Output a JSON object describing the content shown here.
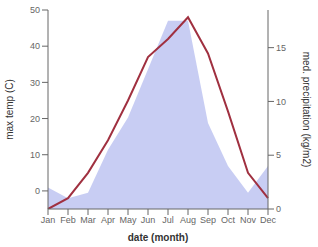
{
  "chart_data": {
    "type": "line",
    "categories": [
      "Jan",
      "Feb",
      "Mar",
      "Apr",
      "May",
      "Jun",
      "Jul",
      "Aug",
      "Sep",
      "Oct",
      "Nov",
      "Dec"
    ],
    "series": [
      {
        "type": "area",
        "axis": "y2",
        "color": "#b0b8ee",
        "values": [
          2,
          1,
          1.5,
          5.5,
          8.5,
          13,
          17.5,
          17.5,
          8,
          4,
          1.5,
          4
        ]
      },
      {
        "type": "line",
        "color": "#a03040",
        "values": [
          -5,
          -2,
          5,
          14,
          25,
          37,
          42,
          48,
          38,
          22,
          5,
          -2
        ]
      }
    ],
    "xlabel": "date (month)",
    "ylabel": "max temp (C)",
    "y2label": "med. precipitation (kg/m2)",
    "ylim": [
      -5,
      50
    ],
    "yticks": [
      0,
      10,
      20,
      30,
      40,
      50
    ],
    "y2lim": [
      0,
      18.5
    ],
    "y2ticks": [
      0,
      5,
      10,
      15
    ],
    "grid": false
  }
}
